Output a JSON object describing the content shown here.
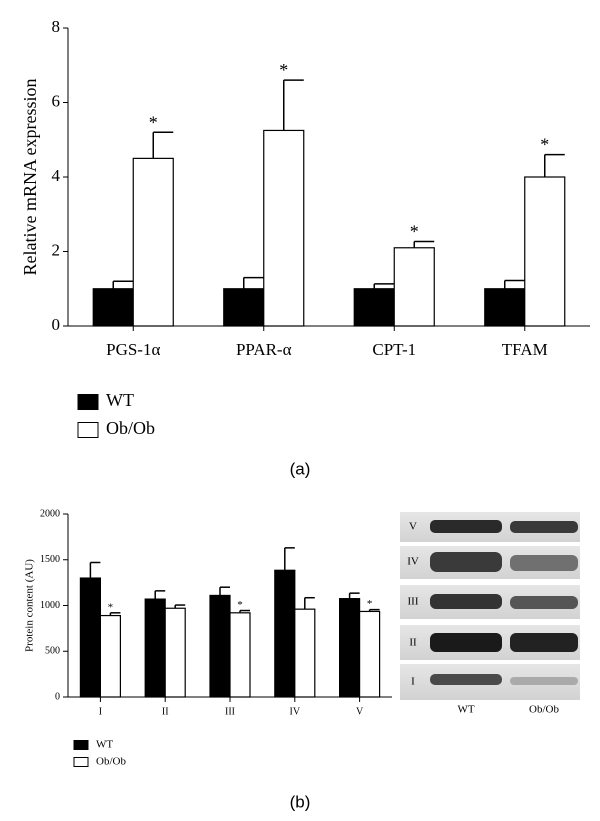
{
  "chart_data": [
    {
      "type": "bar",
      "panel_label": "(a)",
      "ylabel": "Relative mRNA expression",
      "categories": [
        "PGS-1α",
        "PPAR-α",
        "CPT-1",
        "TFAM"
      ],
      "series": [
        {
          "name": "WT",
          "color": "#000000",
          "values": [
            1,
            1,
            1,
            1
          ],
          "errors": [
            0.2,
            0.3,
            0.13,
            0.22
          ]
        },
        {
          "name": "Ob/Ob",
          "color": "#ffffff",
          "values": [
            4.5,
            5.25,
            2.1,
            4.0
          ],
          "errors": [
            0.7,
            1.35,
            0.17,
            0.6
          ],
          "annotations": [
            "*",
            "*",
            "*",
            "*"
          ]
        }
      ],
      "ylim": [
        0,
        8
      ],
      "yticks": [
        0,
        2,
        4,
        6,
        8
      ]
    },
    {
      "type": "bar",
      "panel_label": "(b)",
      "ylabel": "Protein content (AU)",
      "categories": [
        "I",
        "II",
        "III",
        "IV",
        "V"
      ],
      "series": [
        {
          "name": "WT",
          "color": "#000000",
          "values": [
            1300,
            1070,
            1110,
            1385,
            1075
          ],
          "errors": [
            170,
            90,
            90,
            245,
            60
          ]
        },
        {
          "name": "Ob/Ob",
          "color": "#ffffff",
          "values": [
            890,
            970,
            920,
            960,
            935
          ],
          "errors": [
            30,
            35,
            25,
            125,
            20
          ],
          "annotations": [
            "*",
            null,
            "*",
            null,
            "*"
          ]
        }
      ],
      "ylim": [
        0,
        2000
      ],
      "yticks": [
        0,
        500,
        1000,
        1500,
        2000
      ]
    }
  ],
  "blot": {
    "row_labels": [
      "V",
      "IV",
      "III",
      "II",
      "I"
    ],
    "column_labels": [
      "WT",
      "Ob/Ob"
    ]
  }
}
